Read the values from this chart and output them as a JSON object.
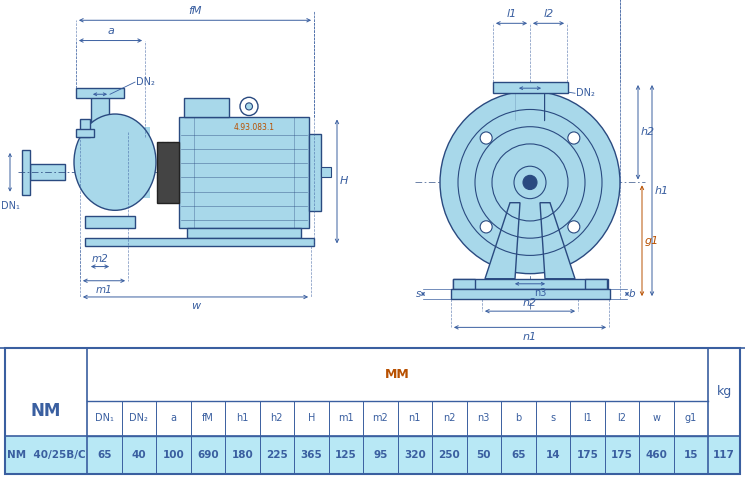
{
  "bg_color": "#ffffff",
  "pump_color": "#a8d8ea",
  "pump_light": "#c8e8f5",
  "pump_dark": "#5ab8d8",
  "dim_color": "#3a5fa0",
  "orange_color": "#b85000",
  "line_color": "#2a4a80",
  "table_header_bg": "#ffffff",
  "table_data_bg": "#b8e8f5",
  "table_border": "#3a5fa0",
  "table_headers": [
    "DN₁",
    "DN₂",
    "a",
    "fM",
    "h1",
    "h2",
    "H",
    "m1",
    "m2",
    "n1",
    "n2",
    "n3",
    "b",
    "s",
    "l1",
    "l2",
    "w",
    "g1"
  ],
  "table_model": "NM  40/25B/C",
  "table_values": [
    "65",
    "40",
    "100",
    "690",
    "180",
    "225",
    "365",
    "125",
    "95",
    "320",
    "250",
    "50",
    "65",
    "14",
    "175",
    "175",
    "460",
    "15"
  ],
  "table_kg": "117",
  "code": "4.93.083.1"
}
